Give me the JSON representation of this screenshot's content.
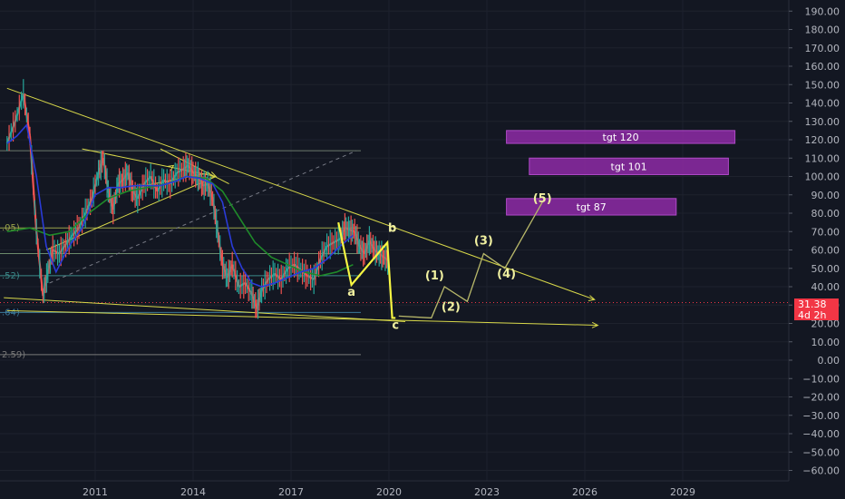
{
  "chart_data": {
    "type": "line",
    "title": "",
    "xlabel": "",
    "ylabel": "",
    "x_tick_labels": [
      "2011",
      "2014",
      "2017",
      "2020",
      "2023",
      "2026",
      "2029"
    ],
    "x_tick_years": [
      2011,
      2014,
      2017,
      2020,
      2023,
      2026,
      2029
    ],
    "x_range": [
      2008.2,
      2032.2
    ],
    "ylim": [
      -66,
      196
    ],
    "y_ticks": [
      190,
      180,
      170,
      160,
      150,
      140,
      130,
      120,
      110,
      100,
      90,
      80,
      70,
      60,
      50,
      40,
      30,
      20,
      10,
      0,
      -10,
      -20,
      -30,
      -40,
      -50,
      -60
    ],
    "y_tick_labels": [
      "190.00",
      "180.00",
      "170.00",
      "160.00",
      "150.00",
      "140.00",
      "130.00",
      "120.00",
      "110.00",
      "100.00",
      "90.00",
      "80.00",
      "70.00",
      "60.00",
      "50.00",
      "40.00",
      "30.00",
      "20.00",
      "10.00",
      "0.00",
      "−10.00",
      "−20.00",
      "−30.00",
      "−40.00",
      "−50.00",
      "−60.00"
    ],
    "grid": true,
    "price_series": {
      "name": "",
      "x": [
        2008.3,
        2008.55,
        2008.8,
        2009.0,
        2009.2,
        2009.4,
        2009.55,
        2009.7,
        2009.9,
        2010.1,
        2010.3,
        2010.5,
        2010.7,
        2010.9,
        2011.1,
        2011.25,
        2011.4,
        2011.55,
        2011.7,
        2011.85,
        2012.0,
        2012.15,
        2012.3,
        2012.5,
        2012.7,
        2012.9,
        2013.1,
        2013.3,
        2013.5,
        2013.7,
        2013.85,
        2014.0,
        2014.15,
        2014.3,
        2014.45,
        2014.6,
        2014.75,
        2014.9,
        2015.05,
        2015.2,
        2015.4,
        2015.6,
        2015.8,
        2015.95,
        2016.1,
        2016.3,
        2016.5,
        2016.7,
        2016.9,
        2017.1,
        2017.3,
        2017.5,
        2017.7,
        2017.9,
        2018.1,
        2018.3,
        2018.5,
        2018.65,
        2018.8,
        2018.95,
        2019.1,
        2019.25,
        2019.4,
        2019.55,
        2019.7,
        2019.85,
        2020.0
      ],
      "y": [
        118,
        130,
        145,
        122,
        70,
        35,
        48,
        60,
        58,
        63,
        68,
        72,
        80,
        88,
        102,
        110,
        92,
        82,
        96,
        98,
        102,
        92,
        88,
        96,
        100,
        92,
        98,
        96,
        102,
        104,
        106,
        102,
        100,
        95,
        96,
        88,
        70,
        52,
        45,
        52,
        40,
        42,
        36,
        28,
        38,
        44,
        47,
        44,
        50,
        52,
        49,
        46,
        44,
        55,
        62,
        64,
        66,
        72,
        71,
        70,
        62,
        58,
        65,
        60,
        58,
        56,
        54
      ]
    },
    "blue_ma": {
      "x": [
        2008.3,
        2008.6,
        2008.9,
        2009.2,
        2009.5,
        2009.8,
        2010.2,
        2010.6,
        2011.0,
        2011.4,
        2011.8,
        2012.2,
        2012.6,
        2013.0,
        2013.4,
        2013.8,
        2014.2,
        2014.6,
        2014.9,
        2015.2,
        2015.5,
        2015.8,
        2016.1,
        2016.5,
        2016.9,
        2017.3,
        2017.7,
        2018.1,
        2018.5,
        2018.9
      ],
      "y": [
        118,
        122,
        128,
        100,
        62,
        48,
        62,
        72,
        90,
        94,
        94,
        95,
        95,
        95,
        97,
        100,
        99,
        96,
        86,
        62,
        50,
        42,
        40,
        42,
        45,
        48,
        50,
        55,
        62,
        68
      ]
    },
    "green_ma": {
      "x": [
        2008.3,
        2009.0,
        2009.6,
        2010.2,
        2010.8,
        2011.4,
        2012.0,
        2012.6,
        2013.2,
        2013.8,
        2014.4,
        2014.9,
        2015.4,
        2015.9,
        2016.4,
        2016.9,
        2017.4,
        2017.9,
        2018.4,
        2018.9
      ],
      "y": [
        70,
        72,
        68,
        70,
        80,
        88,
        92,
        94,
        96,
        100,
        99,
        92,
        78,
        64,
        56,
        52,
        48,
        46,
        48,
        52
      ]
    },
    "wave_labels": [
      {
        "label": "a",
        "x": 2018.85,
        "y": 35
      },
      {
        "label": "b",
        "x": 2020.1,
        "y": 70
      },
      {
        "label": "c",
        "x": 2020.2,
        "y": 17
      },
      {
        "label": "(1)",
        "x": 2021.4,
        "y": 44
      },
      {
        "label": "(2)",
        "x": 2021.9,
        "y": 27
      },
      {
        "label": "(3)",
        "x": 2022.9,
        "y": 63
      },
      {
        "label": "(4)",
        "x": 2023.6,
        "y": 45
      },
      {
        "label": "(5)",
        "x": 2024.7,
        "y": 86
      }
    ],
    "projection_path": {
      "x": [
        2020.3,
        2021.3,
        2021.7,
        2022.4,
        2022.9,
        2023.55,
        2024.7
      ],
      "y": [
        24,
        23,
        40,
        32,
        58,
        50,
        86
      ]
    },
    "abc_path": {
      "x": [
        2018.45,
        2018.85,
        2019.95,
        2020.1,
        2020.2
      ],
      "y": [
        75,
        41,
        64,
        23,
        23
      ]
    },
    "targets": [
      {
        "label": "tgt 120",
        "y_low": 118,
        "y_high": 125,
        "x_start": 2023.6,
        "x_end": 2030.6
      },
      {
        "label": "tgt 101",
        "y_low": 101,
        "y_high": 110,
        "x_start": 2024.3,
        "x_end": 2030.4
      },
      {
        "label": "tgt 87",
        "y_low": 79,
        "y_high": 88,
        "x_start": 2023.6,
        "x_end": 2028.8
      }
    ],
    "trend_lines": [
      {
        "x": [
          2008.3,
          2026.3
        ],
        "y": [
          148,
          33
        ]
      },
      {
        "x": [
          2008.2,
          2020.5
        ],
        "y": [
          34,
          21
        ]
      },
      {
        "x": [
          2008.3,
          2026.4
        ],
        "y": [
          27,
          19
        ]
      },
      {
        "x": [
          2010.6,
          2014.7
        ],
        "y": [
          115,
          100
        ]
      },
      {
        "x": [
          2009.5,
          2014.7
        ],
        "y": [
          60,
          100
        ]
      },
      {
        "x": [
          2012.5,
          2014.5
        ],
        "y": [
          95,
          102
        ]
      },
      {
        "x": [
          2013.0,
          2015.1
        ],
        "y": [
          115,
          96
        ]
      }
    ],
    "horizontal_levels": [
      {
        "y": 114,
        "label": "",
        "color": "#6b7a6b"
      },
      {
        "y": 72,
        "label": ".05)",
        "color": "#9aa34a"
      },
      {
        "y": 58,
        "label": "",
        "color": "#6b8a6b"
      },
      {
        "y": 46,
        "label": ".52)",
        "color": "#3b8a8a"
      },
      {
        "y": 26,
        "label": ".64)",
        "color": "#3b7a9a"
      },
      {
        "y": 3,
        "label": "2.59)",
        "color": "#7a7a7a"
      }
    ],
    "colors": {
      "background": "#131722",
      "price_up": "#26a69a",
      "price_down": "#ef5350",
      "blue_ma": "#2a3bd8",
      "green_ma": "#1f8a2a",
      "trend": "#d8d84a",
      "wave": "#f0f0a0",
      "target_box": "#8e2aa6",
      "price_badge": "#f23645"
    }
  },
  "price_label": {
    "value": "31.38",
    "countdown": "4d 2h"
  }
}
